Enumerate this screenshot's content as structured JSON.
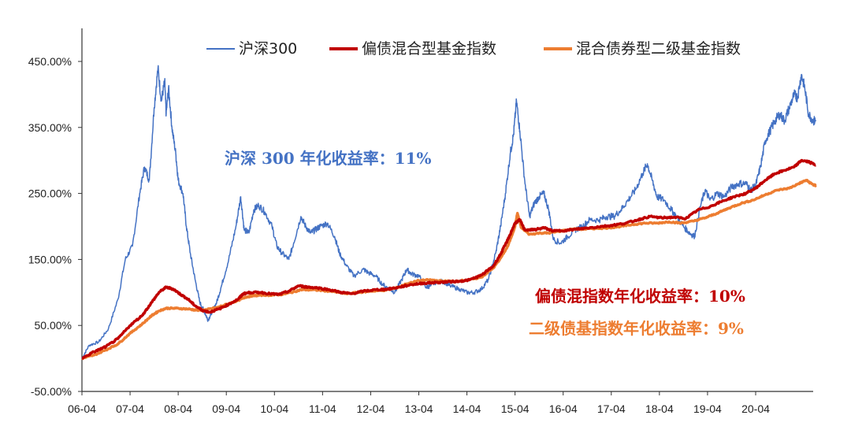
{
  "chart_data": {
    "type": "line",
    "ylim": [
      -50,
      500
    ],
    "yticks": [
      -50,
      50,
      150,
      250,
      350,
      450
    ],
    "ytick_labels": [
      "-50.00%",
      "50.00%",
      "150.00%",
      "250.00%",
      "350.00%",
      "450.00%"
    ],
    "xlim": [
      2006.25,
      2021.55
    ],
    "xticks": [
      2006.25,
      2007.25,
      2008.25,
      2009.25,
      2010.25,
      2011.25,
      2012.25,
      2013.25,
      2014.25,
      2015.25,
      2016.25,
      2017.25,
      2018.25,
      2019.25,
      2020.25
    ],
    "xtick_labels": [
      "06-04",
      "07-04",
      "08-04",
      "09-04",
      "10-04",
      "11-04",
      "12-04",
      "13-04",
      "14-04",
      "15-04",
      "16-04",
      "17-04",
      "18-04",
      "19-04",
      "20-04"
    ],
    "grid": false,
    "legend_position": "top",
    "series": [
      {
        "name": "沪深300",
        "color": "#4472C4",
        "width": 1.5,
        "points": [
          [
            2006.25,
            0
          ],
          [
            2006.4,
            20
          ],
          [
            2006.6,
            25
          ],
          [
            2006.8,
            45
          ],
          [
            2007.0,
            90
          ],
          [
            2007.15,
            150
          ],
          [
            2007.3,
            170
          ],
          [
            2007.45,
            250
          ],
          [
            2007.55,
            290
          ],
          [
            2007.65,
            270
          ],
          [
            2007.75,
            380
          ],
          [
            2007.83,
            440
          ],
          [
            2007.9,
            390
          ],
          [
            2007.97,
            420
          ],
          [
            2008.0,
            370
          ],
          [
            2008.05,
            410
          ],
          [
            2008.12,
            350
          ],
          [
            2008.2,
            310
          ],
          [
            2008.25,
            270
          ],
          [
            2008.35,
            250
          ],
          [
            2008.42,
            200
          ],
          [
            2008.5,
            160
          ],
          [
            2008.6,
            120
          ],
          [
            2008.7,
            85
          ],
          [
            2008.8,
            70
          ],
          [
            2008.87,
            58
          ],
          [
            2008.95,
            70
          ],
          [
            2009.05,
            85
          ],
          [
            2009.15,
            110
          ],
          [
            2009.3,
            150
          ],
          [
            2009.45,
            200
          ],
          [
            2009.55,
            245
          ],
          [
            2009.62,
            195
          ],
          [
            2009.72,
            190
          ],
          [
            2009.82,
            225
          ],
          [
            2009.92,
            232
          ],
          [
            2010.05,
            222
          ],
          [
            2010.2,
            200
          ],
          [
            2010.3,
            170
          ],
          [
            2010.4,
            160
          ],
          [
            2010.55,
            150
          ],
          [
            2010.65,
            175
          ],
          [
            2010.8,
            215
          ],
          [
            2010.9,
            200
          ],
          [
            2011.0,
            190
          ],
          [
            2011.1,
            195
          ],
          [
            2011.2,
            200
          ],
          [
            2011.35,
            205
          ],
          [
            2011.5,
            185
          ],
          [
            2011.6,
            160
          ],
          [
            2011.75,
            140
          ],
          [
            2011.9,
            125
          ],
          [
            2012.1,
            135
          ],
          [
            2012.2,
            130
          ],
          [
            2012.35,
            125
          ],
          [
            2012.5,
            112
          ],
          [
            2012.65,
            105
          ],
          [
            2012.75,
            100
          ],
          [
            2012.9,
            120
          ],
          [
            2013.0,
            135
          ],
          [
            2013.1,
            128
          ],
          [
            2013.25,
            125
          ],
          [
            2013.4,
            108
          ],
          [
            2013.5,
            110
          ],
          [
            2013.65,
            118
          ],
          [
            2013.8,
            115
          ],
          [
            2013.9,
            110
          ],
          [
            2014.1,
            105
          ],
          [
            2014.25,
            100
          ],
          [
            2014.4,
            100
          ],
          [
            2014.55,
            105
          ],
          [
            2014.7,
            120
          ],
          [
            2014.85,
            160
          ],
          [
            2014.95,
            200
          ],
          [
            2015.05,
            250
          ],
          [
            2015.15,
            310
          ],
          [
            2015.22,
            340
          ],
          [
            2015.28,
            390
          ],
          [
            2015.35,
            345
          ],
          [
            2015.45,
            270
          ],
          [
            2015.55,
            215
          ],
          [
            2015.65,
            235
          ],
          [
            2015.75,
            245
          ],
          [
            2015.85,
            250
          ],
          [
            2015.95,
            225
          ],
          [
            2016.05,
            180
          ],
          [
            2016.2,
            175
          ],
          [
            2016.35,
            185
          ],
          [
            2016.5,
            195
          ],
          [
            2016.65,
            200
          ],
          [
            2016.8,
            210
          ],
          [
            2017.0,
            210
          ],
          [
            2017.15,
            215
          ],
          [
            2017.3,
            215
          ],
          [
            2017.45,
            225
          ],
          [
            2017.6,
            240
          ],
          [
            2017.75,
            255
          ],
          [
            2017.9,
            280
          ],
          [
            2018.0,
            295
          ],
          [
            2018.1,
            270
          ],
          [
            2018.2,
            245
          ],
          [
            2018.35,
            240
          ],
          [
            2018.5,
            225
          ],
          [
            2018.6,
            215
          ],
          [
            2018.75,
            200
          ],
          [
            2018.88,
            190
          ],
          [
            2018.98,
            185
          ],
          [
            2019.1,
            230
          ],
          [
            2019.2,
            255
          ],
          [
            2019.3,
            240
          ],
          [
            2019.45,
            250
          ],
          [
            2019.6,
            245
          ],
          [
            2019.75,
            260
          ],
          [
            2019.9,
            265
          ],
          [
            2020.05,
            265
          ],
          [
            2020.15,
            255
          ],
          [
            2020.25,
            262
          ],
          [
            2020.35,
            290
          ],
          [
            2020.45,
            330
          ],
          [
            2020.55,
            345
          ],
          [
            2020.65,
            360
          ],
          [
            2020.75,
            370
          ],
          [
            2020.85,
            360
          ],
          [
            2020.95,
            380
          ],
          [
            2021.05,
            400
          ],
          [
            2021.12,
            395
          ],
          [
            2021.2,
            430
          ],
          [
            2021.27,
            410
          ],
          [
            2021.35,
            370
          ],
          [
            2021.45,
            360
          ],
          [
            2021.5,
            360
          ]
        ]
      },
      {
        "name": "偏债混合型基金指数",
        "color": "#C00000",
        "width": 3.5,
        "points": [
          [
            2006.25,
            0
          ],
          [
            2006.5,
            10
          ],
          [
            2006.75,
            18
          ],
          [
            2007.0,
            30
          ],
          [
            2007.25,
            50
          ],
          [
            2007.5,
            65
          ],
          [
            2007.7,
            85
          ],
          [
            2007.85,
            100
          ],
          [
            2008.0,
            108
          ],
          [
            2008.15,
            105
          ],
          [
            2008.3,
            97
          ],
          [
            2008.45,
            90
          ],
          [
            2008.6,
            80
          ],
          [
            2008.75,
            73
          ],
          [
            2008.9,
            70
          ],
          [
            2009.1,
            75
          ],
          [
            2009.3,
            82
          ],
          [
            2009.5,
            90
          ],
          [
            2009.6,
            98
          ],
          [
            2009.75,
            100
          ],
          [
            2009.95,
            100
          ],
          [
            2010.15,
            98
          ],
          [
            2010.35,
            97
          ],
          [
            2010.55,
            102
          ],
          [
            2010.75,
            110
          ],
          [
            2010.95,
            108
          ],
          [
            2011.15,
            107
          ],
          [
            2011.4,
            104
          ],
          [
            2011.65,
            100
          ],
          [
            2011.85,
            98
          ],
          [
            2012.1,
            102
          ],
          [
            2012.35,
            104
          ],
          [
            2012.6,
            105
          ],
          [
            2012.85,
            108
          ],
          [
            2013.1,
            112
          ],
          [
            2013.35,
            114
          ],
          [
            2013.6,
            115
          ],
          [
            2013.85,
            116
          ],
          [
            2014.1,
            117
          ],
          [
            2014.3,
            119
          ],
          [
            2014.55,
            126
          ],
          [
            2014.8,
            140
          ],
          [
            2014.95,
            158
          ],
          [
            2015.1,
            180
          ],
          [
            2015.25,
            205
          ],
          [
            2015.35,
            210
          ],
          [
            2015.45,
            195
          ],
          [
            2015.65,
            195
          ],
          [
            2015.85,
            198
          ],
          [
            2016.05,
            193
          ],
          [
            2016.3,
            194
          ],
          [
            2016.55,
            196
          ],
          [
            2016.8,
            198
          ],
          [
            2017.05,
            200
          ],
          [
            2017.3,
            202
          ],
          [
            2017.55,
            205
          ],
          [
            2017.8,
            210
          ],
          [
            2018.05,
            215
          ],
          [
            2018.3,
            213
          ],
          [
            2018.55,
            214
          ],
          [
            2018.8,
            212
          ],
          [
            2019.05,
            225
          ],
          [
            2019.3,
            230
          ],
          [
            2019.55,
            238
          ],
          [
            2019.8,
            245
          ],
          [
            2020.05,
            250
          ],
          [
            2020.25,
            258
          ],
          [
            2020.45,
            270
          ],
          [
            2020.65,
            280
          ],
          [
            2020.85,
            285
          ],
          [
            2021.05,
            290
          ],
          [
            2021.2,
            300
          ],
          [
            2021.35,
            298
          ],
          [
            2021.5,
            293
          ]
        ]
      },
      {
        "name": "混合债券型二级基金指数",
        "color": "#ED7D31",
        "width": 3.5,
        "points": [
          [
            2006.25,
            0
          ],
          [
            2006.5,
            5
          ],
          [
            2006.75,
            13
          ],
          [
            2007.0,
            22
          ],
          [
            2007.25,
            38
          ],
          [
            2007.5,
            52
          ],
          [
            2007.7,
            65
          ],
          [
            2007.85,
            72
          ],
          [
            2008.0,
            76
          ],
          [
            2008.2,
            76
          ],
          [
            2008.45,
            75
          ],
          [
            2008.65,
            73
          ],
          [
            2008.85,
            74
          ],
          [
            2009.05,
            77
          ],
          [
            2009.3,
            83
          ],
          [
            2009.5,
            88
          ],
          [
            2009.65,
            93
          ],
          [
            2009.8,
            95
          ],
          [
            2010.0,
            96
          ],
          [
            2010.2,
            96
          ],
          [
            2010.4,
            97
          ],
          [
            2010.6,
            100
          ],
          [
            2010.8,
            104
          ],
          [
            2011.0,
            104
          ],
          [
            2011.25,
            103
          ],
          [
            2011.5,
            101
          ],
          [
            2011.75,
            98
          ],
          [
            2012.0,
            100
          ],
          [
            2012.25,
            102
          ],
          [
            2012.5,
            103
          ],
          [
            2012.75,
            106
          ],
          [
            2013.0,
            113
          ],
          [
            2013.25,
            118
          ],
          [
            2013.5,
            119
          ],
          [
            2013.75,
            117
          ],
          [
            2014.0,
            117
          ],
          [
            2014.3,
            119
          ],
          [
            2014.55,
            123
          ],
          [
            2014.8,
            137
          ],
          [
            2014.95,
            152
          ],
          [
            2015.1,
            170
          ],
          [
            2015.25,
            200
          ],
          [
            2015.3,
            220
          ],
          [
            2015.38,
            198
          ],
          [
            2015.55,
            188
          ],
          [
            2015.75,
            190
          ],
          [
            2015.95,
            190
          ],
          [
            2016.2,
            193
          ],
          [
            2016.45,
            196
          ],
          [
            2016.7,
            196
          ],
          [
            2016.95,
            197
          ],
          [
            2017.2,
            198
          ],
          [
            2017.45,
            200
          ],
          [
            2017.7,
            203
          ],
          [
            2017.95,
            205
          ],
          [
            2018.2,
            205
          ],
          [
            2018.45,
            207
          ],
          [
            2018.7,
            205
          ],
          [
            2018.95,
            208
          ],
          [
            2019.2,
            213
          ],
          [
            2019.45,
            220
          ],
          [
            2019.7,
            228
          ],
          [
            2019.95,
            235
          ],
          [
            2020.2,
            240
          ],
          [
            2020.45,
            248
          ],
          [
            2020.7,
            255
          ],
          [
            2020.95,
            258
          ],
          [
            2021.15,
            265
          ],
          [
            2021.3,
            270
          ],
          [
            2021.45,
            263
          ],
          [
            2021.5,
            262
          ]
        ]
      }
    ],
    "annotations": [
      {
        "text": "沪深 300 年化收益率：11%",
        "color": "#4472C4"
      },
      {
        "text": "偏债混指数年化收益率：10%",
        "color": "#C00000"
      },
      {
        "text": "二级债基指数年化收益率：9%",
        "color": "#ED7D31"
      }
    ]
  }
}
